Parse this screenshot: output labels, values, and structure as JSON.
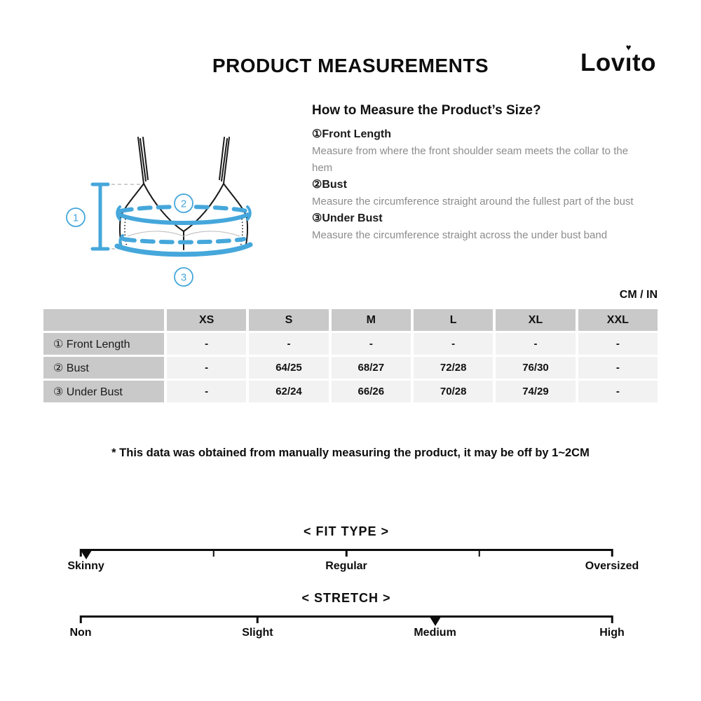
{
  "page": {
    "title": "PRODUCT MEASUREMENTS",
    "brand": "Lovito"
  },
  "how_to": {
    "heading": "How to Measure the Product’s Size?",
    "items": [
      {
        "label": "①Front Length",
        "desc": "Measure from where the front shoulder seam meets the collar to the hem"
      },
      {
        "label": "②Bust",
        "desc": "Measure the circumference straight around the fullest part of the bust"
      },
      {
        "label": "③Under Bust",
        "desc": "Measure the circumference straight across the under bust band"
      }
    ]
  },
  "units_label": "CM / IN",
  "size_table": {
    "columns": [
      "",
      "XS",
      "S",
      "M",
      "L",
      "XL",
      "XXL"
    ],
    "rows": [
      {
        "label": "① Front Length",
        "values": [
          "-",
          "-",
          "-",
          "-",
          "-",
          "-"
        ]
      },
      {
        "label": "② Bust",
        "values": [
          "-",
          "64/25",
          "68/27",
          "72/28",
          "76/30",
          "-"
        ]
      },
      {
        "label": "③ Under Bust",
        "values": [
          "-",
          "62/24",
          "66/26",
          "70/28",
          "74/29",
          "-"
        ]
      }
    ]
  },
  "note": "* This data was obtained from manually measuring the product, it may be off by 1~2CM",
  "scales": [
    {
      "name": "fit-type",
      "title": "< FIT TYPE >",
      "ticks_pct": [
        0,
        25,
        50,
        75,
        100
      ],
      "marker_pct": 1,
      "marker_value": "Skinny",
      "labels": [
        {
          "text": "Skinny",
          "pct": 1
        },
        {
          "text": "Regular",
          "pct": 50
        },
        {
          "text": "Oversized",
          "pct": 100
        }
      ]
    },
    {
      "name": "stretch",
      "title": "< STRETCH >",
      "ticks_pct": [
        0,
        33.3,
        66.7,
        100
      ],
      "marker_pct": 66.7,
      "marker_value": "Medium",
      "labels": [
        {
          "text": "Non",
          "pct": 0
        },
        {
          "text": "Slight",
          "pct": 33.3
        },
        {
          "text": "Medium",
          "pct": 66.7
        },
        {
          "text": "High",
          "pct": 100
        }
      ]
    }
  ],
  "diagram": {
    "callouts": [
      "1",
      "2",
      "3"
    ],
    "accent_color": "#45a7db"
  }
}
